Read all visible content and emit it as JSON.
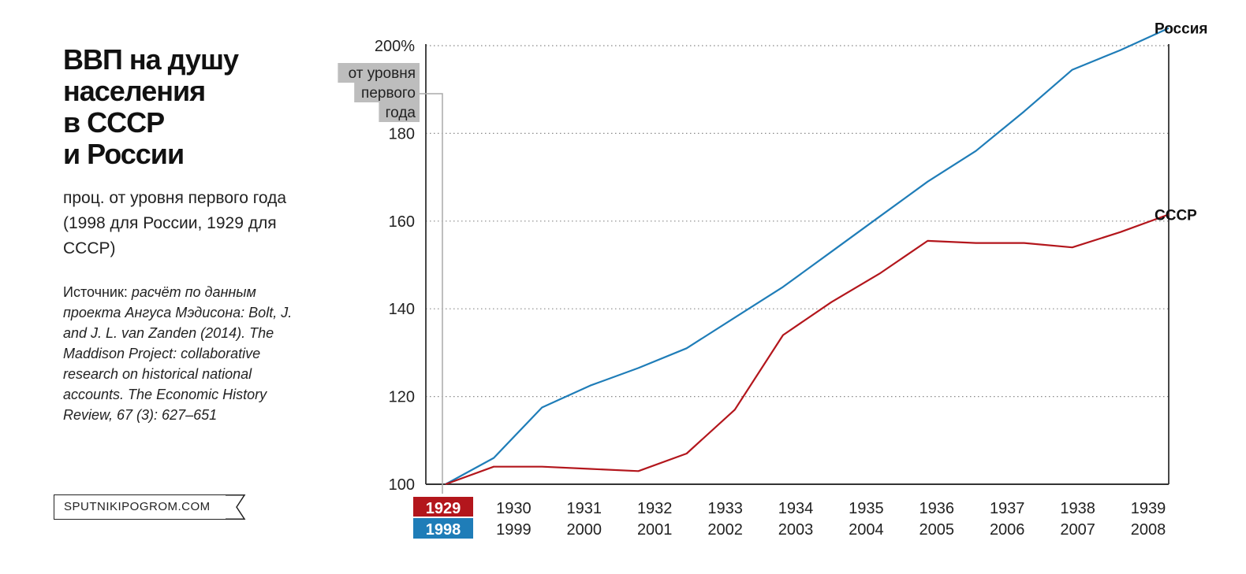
{
  "title_lines": [
    "ВВП на душу",
    "населения",
    "в СССР",
    "и России"
  ],
  "subtitle": "проц. от уровня первого года (1998 для России, 1929 для СССР)",
  "source": {
    "label": "Источник: ",
    "text": "расчёт по данным проекта Ангуса Мэдисона: Bolt, J. and J. L. van Zanden (2014). The Maddison Project: collaborative research on historical national accounts. The Economic History Review, 67 (3): 627–651"
  },
  "brand": "SPUTNIKIPOGROM.COM",
  "colors": {
    "russia": "#1f7db8",
    "ussr": "#b3161c",
    "axis": "#333333",
    "grid": "#888888",
    "note_bg": "#bdbdbd"
  },
  "chart_data": {
    "type": "line",
    "y_axis": {
      "ylim": [
        100,
        200
      ],
      "ticks": [
        100,
        120,
        140,
        160,
        180,
        200
      ],
      "tick_labels": [
        "100",
        "120",
        "140",
        "160",
        "180",
        "200%"
      ],
      "top_note": [
        "от уровня",
        "первого",
        "года"
      ]
    },
    "x_axis": {
      "ussr_years": [
        "1929",
        "1930",
        "1931",
        "1932",
        "1933",
        "1934",
        "1935",
        "1936",
        "1937",
        "1938",
        "1939"
      ],
      "russia_years": [
        "1998",
        "1999",
        "2000",
        "2001",
        "2002",
        "2003",
        "2004",
        "2005",
        "2006",
        "2007",
        "2008"
      ]
    },
    "series": [
      {
        "name": "Россия",
        "color": "#1f7db8",
        "points": [
          [
            0,
            100
          ],
          [
            1,
            106
          ],
          [
            2,
            117.5
          ],
          [
            3,
            122.5
          ],
          [
            4,
            126.5
          ],
          [
            5,
            131
          ],
          [
            6,
            138
          ],
          [
            7,
            145
          ],
          [
            8,
            153
          ],
          [
            9,
            161
          ],
          [
            10,
            169
          ],
          [
            11,
            176
          ],
          [
            12,
            185
          ],
          [
            13,
            194.5
          ],
          [
            14,
            199
          ],
          [
            15,
            204
          ]
        ]
      },
      {
        "name": "СССР",
        "color": "#b3161c",
        "points": [
          [
            0,
            100
          ],
          [
            1,
            104
          ],
          [
            2,
            104
          ],
          [
            3,
            103.5
          ],
          [
            4,
            103
          ],
          [
            5,
            107
          ],
          [
            6,
            117
          ],
          [
            7,
            134
          ],
          [
            8,
            141.5
          ],
          [
            9,
            148
          ],
          [
            10,
            155.5
          ],
          [
            11,
            155
          ],
          [
            12,
            155
          ],
          [
            13,
            154
          ],
          [
            14,
            157.5
          ],
          [
            15,
            161.5
          ]
        ]
      }
    ]
  }
}
